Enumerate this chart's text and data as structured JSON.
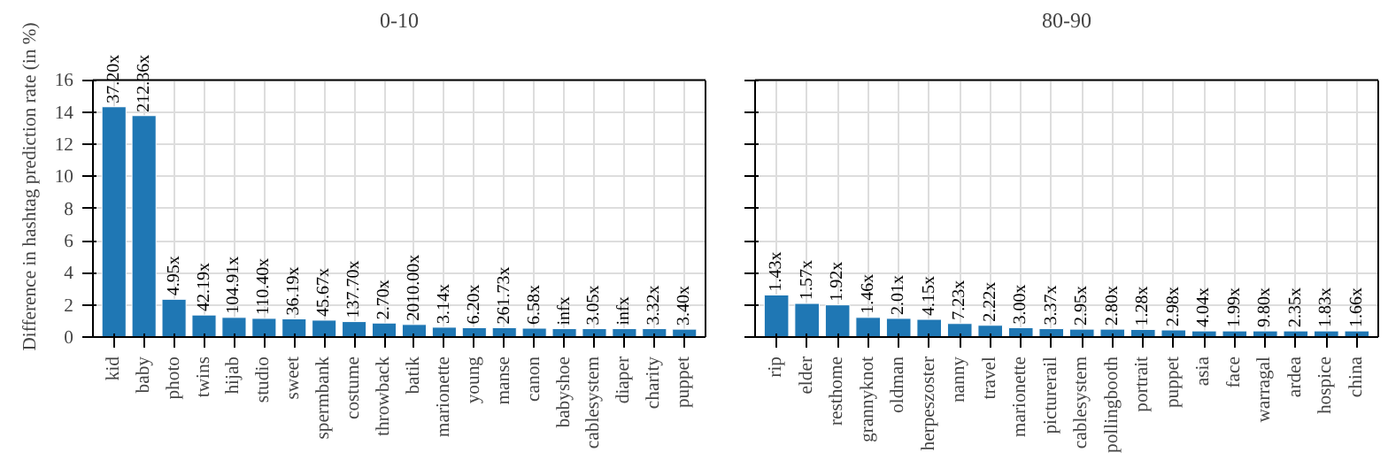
{
  "chart_data": [
    {
      "type": "bar",
      "title": "0-10",
      "ylabel": "Difference in hashtag prediction rate (in %)",
      "color": "#1f77b4",
      "ylim": [
        0,
        16
      ],
      "yticks": [
        0,
        2,
        4,
        6,
        8,
        10,
        12,
        14,
        16
      ],
      "grid": true,
      "categories": [
        "kid",
        "baby",
        "photo",
        "twins",
        "hijab",
        "studio",
        "sweet",
        "spermbank",
        "costume",
        "throwback",
        "batik",
        "marionette",
        "young",
        "manse",
        "canon",
        "babyshoe",
        "cablesystem",
        "diaper",
        "charity",
        "puppet"
      ],
      "values": [
        14.33,
        13.78,
        2.35,
        1.37,
        1.22,
        1.16,
        1.13,
        1.05,
        0.96,
        0.87,
        0.78,
        0.61,
        0.58,
        0.58,
        0.55,
        0.52,
        0.52,
        0.52,
        0.52,
        0.49
      ],
      "annotations": [
        {
          "text": "37.20x",
          "x": "kid",
          "y": 14.33
        },
        {
          "text": "212.36x",
          "x": "baby",
          "y": 13.78
        },
        {
          "text": "4.95x",
          "x": "photo",
          "y": 2.35
        },
        {
          "text": "42.19x",
          "x": "twins",
          "y": 1.37
        },
        {
          "text": "104.91x",
          "x": "hijab",
          "y": 1.22
        },
        {
          "text": "110.40x",
          "x": "studio",
          "y": 1.16
        },
        {
          "text": "36.19x",
          "x": "sweet",
          "y": 1.13
        },
        {
          "text": "45.67x",
          "x": "spermbank",
          "y": 1.05
        },
        {
          "text": "137.70x",
          "x": "costume",
          "y": 0.96
        },
        {
          "text": "2.70x",
          "x": "throwback",
          "y": 0.87
        },
        {
          "text": "2010.00x",
          "x": "batik",
          "y": 0.78
        },
        {
          "text": "3.14x",
          "x": "marionette",
          "y": 0.61
        },
        {
          "text": "6.20x",
          "x": "young",
          "y": 0.58
        },
        {
          "text": "261.73x",
          "x": "manse",
          "y": 0.58
        },
        {
          "text": "6.58x",
          "x": "canon",
          "y": 0.55
        },
        {
          "text": "infx",
          "x": "babyshoe",
          "y": 0.52
        },
        {
          "text": "3.05x",
          "x": "cablesystem",
          "y": 0.52
        },
        {
          "text": "infx",
          "x": "diaper",
          "y": 0.52
        },
        {
          "text": "3.32x",
          "x": "charity",
          "y": 0.52
        },
        {
          "text": "3.40x",
          "x": "puppet",
          "y": 0.49
        }
      ]
    },
    {
      "type": "bar",
      "title": "80-90",
      "color": "#1f77b4",
      "ylim": [
        0,
        16
      ],
      "yticks": [
        0,
        2,
        4,
        6,
        8,
        10,
        12,
        14,
        16
      ],
      "grid": true,
      "tick_labels": "x",
      "categories": [
        "rip",
        "elder",
        "resthome",
        "grannyknot",
        "oldman",
        "herpeszoster",
        "nanny",
        "travel",
        "marionette",
        "picturerail",
        "cablesystem",
        "pollingbooth",
        "portrait",
        "puppet",
        "asia",
        "face",
        "warragal",
        "ardea",
        "hospice",
        "china"
      ],
      "values": [
        2.62,
        2.09,
        2.0,
        1.22,
        1.16,
        1.1,
        0.84,
        0.73,
        0.58,
        0.52,
        0.49,
        0.49,
        0.47,
        0.44,
        0.38,
        0.38,
        0.38,
        0.38,
        0.38,
        0.38
      ],
      "annotations": [
        {
          "text": "1.43x",
          "x": "rip",
          "y": 2.62
        },
        {
          "text": "1.57x",
          "x": "elder",
          "y": 2.09
        },
        {
          "text": "1.92x",
          "x": "resthome",
          "y": 2.0
        },
        {
          "text": "1.46x",
          "x": "grannyknot",
          "y": 1.22
        },
        {
          "text": "2.01x",
          "x": "oldman",
          "y": 1.16
        },
        {
          "text": "4.15x",
          "x": "herpeszoster",
          "y": 1.1
        },
        {
          "text": "7.23x",
          "x": "nanny",
          "y": 0.84
        },
        {
          "text": "2.22x",
          "x": "travel",
          "y": 0.73
        },
        {
          "text": "3.00x",
          "x": "marionette",
          "y": 0.58
        },
        {
          "text": "3.37x",
          "x": "picturerail",
          "y": 0.52
        },
        {
          "text": "2.95x",
          "x": "cablesystem",
          "y": 0.49
        },
        {
          "text": "2.80x",
          "x": "pollingbooth",
          "y": 0.49
        },
        {
          "text": "1.28x",
          "x": "portrait",
          "y": 0.47
        },
        {
          "text": "2.98x",
          "x": "puppet",
          "y": 0.44
        },
        {
          "text": "4.04x",
          "x": "asia",
          "y": 0.38
        },
        {
          "text": "1.99x",
          "x": "face",
          "y": 0.38
        },
        {
          "text": "9.80x",
          "x": "warragal",
          "y": 0.38
        },
        {
          "text": "2.35x",
          "x": "ardea",
          "y": 0.38
        },
        {
          "text": "1.83x",
          "x": "hospice",
          "y": 0.38
        },
        {
          "text": "1.66x",
          "x": "china",
          "y": 0.38
        }
      ]
    }
  ]
}
